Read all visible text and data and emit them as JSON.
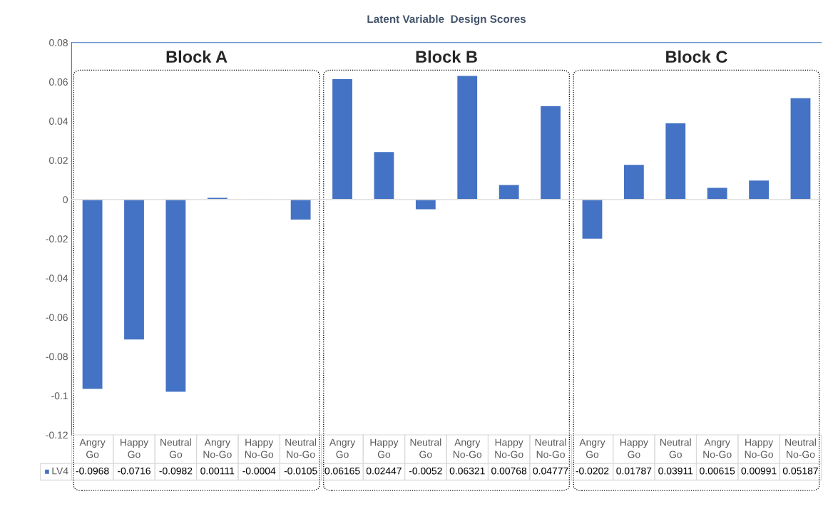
{
  "chart_data": {
    "type": "bar",
    "title": "Latent Variable  Design Scores",
    "categories": [
      "Angry\nGo",
      "Happy\nGo",
      "Neutral\nGo",
      "Angry\nNo-Go",
      "Happy\nNo-Go",
      "Neutral\nNo-Go",
      "Angry\nGo",
      "Happy\nGo",
      "Neutral\nGo",
      "Angry\nNo-Go",
      "Happy\nNo-Go",
      "Neutral\nNo-Go",
      "Angry\nGo",
      "Happy\nGo",
      "Neutral\nGo",
      "Angry\nNo-Go",
      "Happy\nNo-Go",
      "Neutral\nNo-Go"
    ],
    "series": [
      {
        "name": "LV4",
        "color": "#4472c4",
        "values": [
          -0.0968,
          -0.0716,
          -0.0982,
          0.00111,
          -0.0004,
          -0.0105,
          0.06165,
          0.02447,
          -0.0052,
          0.06321,
          0.00768,
          0.04777,
          -0.0202,
          0.01787,
          0.03911,
          0.00615,
          0.00991,
          0.05187
        ]
      }
    ],
    "ylim": [
      -0.12,
      0.08
    ],
    "yticks": [
      -0.12,
      -0.1,
      -0.08,
      -0.06,
      -0.04,
      -0.02,
      0,
      0.02,
      0.04,
      0.06,
      0.08
    ],
    "data_labels": true,
    "annotations": [
      "Block A",
      "Block B",
      "Block C"
    ]
  }
}
